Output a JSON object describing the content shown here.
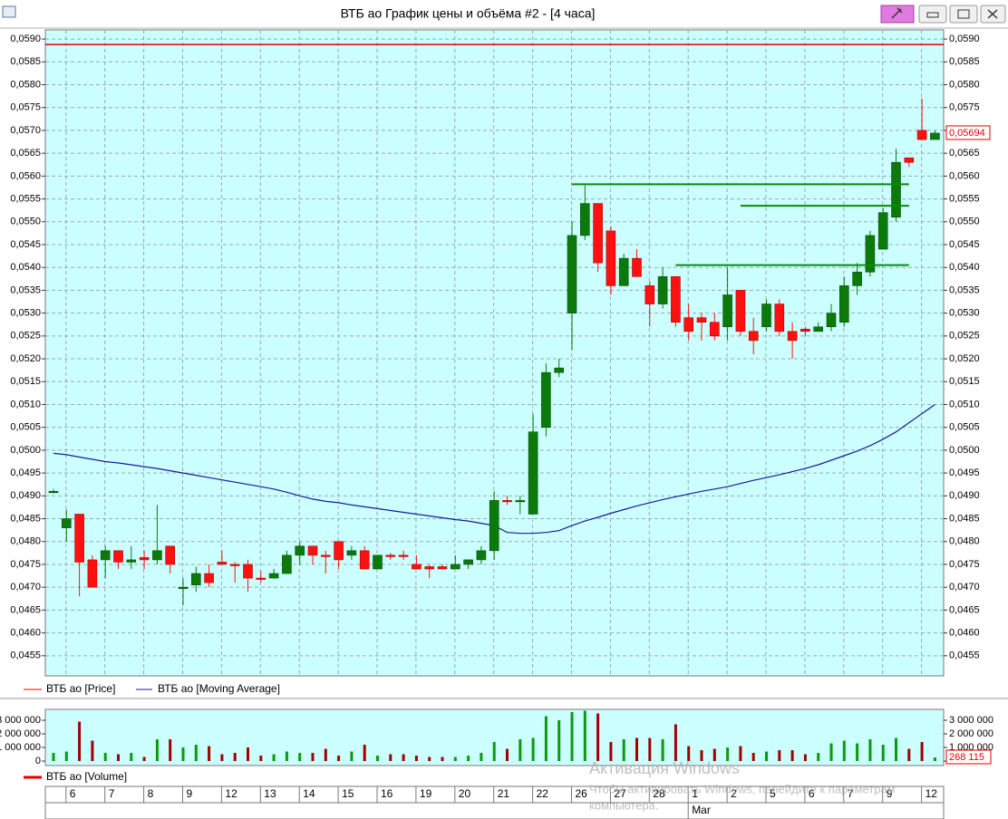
{
  "window": {
    "title": "ВТБ ао График цены и объёма #2 - [4 часа]"
  },
  "watermark": {
    "line1": "Активация Windows",
    "line2": "Чтобы активировать Windows, перейдите к параметрам",
    "line3": "компьютера."
  },
  "time_axis": {
    "days": [
      "6",
      "7",
      "8",
      "9",
      "12",
      "13",
      "14",
      "15",
      "16",
      "19",
      "20",
      "21",
      "22",
      "26",
      "27",
      "28",
      "1",
      "2",
      "5",
      "6",
      "7",
      "9",
      "12"
    ],
    "months": [
      "Mar"
    ]
  },
  "chart_data": [
    {
      "type": "candlestick",
      "up_color": "#0b7a0b",
      "down_color": "#ff1010",
      "series": [
        {
          "name": "ВТБ ао [Price]",
          "color": "#e00000",
          "open": [
            0.0491,
            0.0483,
            0.0486,
            0.0476,
            0.0476,
            0.0478,
            0.04755,
            0.04765,
            0.0476,
            0.0479,
            0.047,
            0.04705,
            0.0473,
            0.04755,
            0.0475,
            0.0475,
            0.0472,
            0.0472,
            0.0473,
            0.0477,
            0.0479,
            0.0477,
            0.048,
            0.0477,
            0.0478,
            0.0474,
            0.0477,
            0.0477,
            0.0475,
            0.04745,
            0.04745,
            0.0474,
            0.0475,
            0.0476,
            0.0478,
            0.0489,
            0.0489,
            0.0486,
            0.0505,
            0.0517,
            0.053,
            0.0547,
            0.0554,
            0.0548,
            0.0536,
            0.0542,
            0.0536,
            0.0532,
            0.0538,
            0.0529,
            0.0529,
            0.0528,
            0.0527,
            0.0535,
            0.0526,
            0.0527,
            0.0532,
            0.0526,
            0.05265,
            0.0526,
            0.0527,
            0.0528,
            0.0536,
            0.0539,
            0.0544,
            0.0551,
            0.0564,
            0.057,
            0.0568
          ],
          "high": [
            0.04915,
            0.0487,
            0.0486,
            0.0477,
            0.0479,
            0.0478,
            0.0479,
            0.0478,
            0.0488,
            0.0479,
            0.0472,
            0.04745,
            0.0475,
            0.0478,
            0.04755,
            0.0476,
            0.04735,
            0.0474,
            0.0478,
            0.048,
            0.0479,
            0.0478,
            0.048,
            0.0479,
            0.0479,
            0.0477,
            0.04775,
            0.0478,
            0.0477,
            0.0475,
            0.0475,
            0.0477,
            0.0476,
            0.0479,
            0.0491,
            0.049,
            0.049,
            0.0508,
            0.0519,
            0.052,
            0.055,
            0.0558,
            0.0554,
            0.0549,
            0.0543,
            0.0544,
            0.0537,
            0.054,
            0.0538,
            0.0532,
            0.053,
            0.053,
            0.054,
            0.0535,
            0.0529,
            0.0533,
            0.0533,
            0.0528,
            0.0527,
            0.0528,
            0.0532,
            0.0538,
            0.0541,
            0.0548,
            0.0553,
            0.0566,
            0.0564,
            0.0577,
            0.057
          ],
          "low": [
            0.04905,
            0.048,
            0.0468,
            0.047,
            0.0472,
            0.0474,
            0.0474,
            0.0474,
            0.0475,
            0.0473,
            0.0466,
            0.0469,
            0.047,
            0.0475,
            0.0471,
            0.0469,
            0.0471,
            0.0472,
            0.0473,
            0.0475,
            0.0475,
            0.0473,
            0.0474,
            0.0476,
            0.0474,
            0.0474,
            0.0476,
            0.0476,
            0.0474,
            0.0472,
            0.0474,
            0.0474,
            0.0474,
            0.0475,
            0.0476,
            0.0488,
            0.0486,
            0.0486,
            0.0503,
            0.0516,
            0.0522,
            0.0546,
            0.0539,
            0.0534,
            0.0536,
            0.0538,
            0.0527,
            0.0531,
            0.0527,
            0.0524,
            0.0524,
            0.0524,
            0.0524,
            0.0525,
            0.0521,
            0.0526,
            0.0525,
            0.052,
            0.0525,
            0.0526,
            0.0526,
            0.0527,
            0.0534,
            0.0538,
            0.0544,
            0.055,
            0.0562,
            0.0568,
            0.0568
          ],
          "close": [
            0.0491,
            0.0485,
            0.04755,
            0.047,
            0.0478,
            0.04755,
            0.0476,
            0.0476,
            0.0478,
            0.0475,
            0.047,
            0.0473,
            0.0471,
            0.0475,
            0.04748,
            0.0472,
            0.04718,
            0.0473,
            0.0477,
            0.0479,
            0.0477,
            0.04768,
            0.0476,
            0.0478,
            0.0474,
            0.0477,
            0.04768,
            0.04768,
            0.0474,
            0.0474,
            0.0474,
            0.0475,
            0.0476,
            0.0478,
            0.0489,
            0.04888,
            0.0489,
            0.0504,
            0.0517,
            0.0518,
            0.0547,
            0.0554,
            0.0541,
            0.0536,
            0.0542,
            0.0538,
            0.0532,
            0.0538,
            0.0528,
            0.0526,
            0.0528,
            0.0525,
            0.0534,
            0.0526,
            0.0524,
            0.0532,
            0.0526,
            0.0524,
            0.0526,
            0.0527,
            0.053,
            0.0536,
            0.0539,
            0.0547,
            0.0552,
            0.0563,
            0.0563,
            0.0568,
            0.05694
          ]
        },
        {
          "name": "ВТБ ао [Moving Average]",
          "color": "#1a1a9a",
          "values": [
            0.04993,
            0.0499,
            0.04985,
            0.0498,
            0.04975,
            0.04972,
            0.04968,
            0.04964,
            0.0496,
            0.04955,
            0.0495,
            0.04945,
            0.0494,
            0.04935,
            0.0493,
            0.04925,
            0.0492,
            0.04915,
            0.04908,
            0.049,
            0.04893,
            0.04888,
            0.04885,
            0.0488,
            0.04876,
            0.04872,
            0.04868,
            0.04864,
            0.0486,
            0.04856,
            0.04852,
            0.04848,
            0.04845,
            0.0484,
            0.04835,
            0.0482,
            0.04818,
            0.04818,
            0.0482,
            0.04824,
            0.04835,
            0.04845,
            0.04853,
            0.04862,
            0.0487,
            0.04878,
            0.04885,
            0.04892,
            0.04898,
            0.04904,
            0.0491,
            0.04915,
            0.0492,
            0.04927,
            0.04934,
            0.0494,
            0.04946,
            0.04953,
            0.0496,
            0.04968,
            0.04978,
            0.04988,
            0.04998,
            0.0501,
            0.05024,
            0.0504,
            0.0506,
            0.0508,
            0.051
          ]
        }
      ],
      "level": 0.05888,
      "level_color": "#e00000",
      "trend_lines": [
        {
          "value": 0.05582,
          "x": [
            40,
            66
          ]
        },
        {
          "value": 0.05535,
          "x": [
            53,
            66
          ]
        },
        {
          "value": 0.05405,
          "x": [
            48,
            66
          ]
        }
      ],
      "trend_color": "#0b8a0b",
      "current_label": "0,05694",
      "grid": true,
      "ylim": [
        0.04506,
        0.0592
      ],
      "yticks": [
        {
          "value": 0.0455,
          "label": "0,0455"
        },
        {
          "value": 0.046,
          "label": "0,0460"
        },
        {
          "value": 0.0465,
          "label": "0,0465"
        },
        {
          "value": 0.047,
          "label": "0,0470"
        },
        {
          "value": 0.0475,
          "label": "0,0475"
        },
        {
          "value": 0.048,
          "label": "0,0480"
        },
        {
          "value": 0.0485,
          "label": "0,0485"
        },
        {
          "value": 0.049,
          "label": "0,0490"
        },
        {
          "value": 0.0495,
          "label": "0,0495"
        },
        {
          "value": 0.05,
          "label": "0,0500"
        },
        {
          "value": 0.0505,
          "label": "0,0505"
        },
        {
          "value": 0.051,
          "label": "0,0510"
        },
        {
          "value": 0.0515,
          "label": "0,0515"
        },
        {
          "value": 0.052,
          "label": "0,0520"
        },
        {
          "value": 0.0525,
          "label": "0,0525"
        },
        {
          "value": 0.053,
          "label": "0,0530"
        },
        {
          "value": 0.0535,
          "label": "0,0535"
        },
        {
          "value": 0.054,
          "label": "0,0540"
        },
        {
          "value": 0.0545,
          "label": "0,0545"
        },
        {
          "value": 0.055,
          "label": "0,0550"
        },
        {
          "value": 0.0555,
          "label": "0,0555"
        },
        {
          "value": 0.056,
          "label": "0,0560"
        },
        {
          "value": 0.0565,
          "label": "0,0565"
        },
        {
          "value": 0.057,
          "label": "0,0570"
        },
        {
          "value": 0.0575,
          "label": "0,0575"
        },
        {
          "value": 0.058,
          "label": "0,0580"
        },
        {
          "value": 0.0585,
          "label": "0,0585"
        },
        {
          "value": 0.059,
          "label": "0,0590"
        }
      ]
    },
    {
      "type": "bar",
      "up_color": "#0b9a0b",
      "down_color": "#a00000",
      "series": [
        {
          "name": "ВТБ ао [Volume]",
          "color": "#e00000",
          "values": [
            600000,
            700000,
            2900000,
            1500000,
            600000,
            500000,
            600000,
            300000,
            1600000,
            1600000,
            1000000,
            1200000,
            1100000,
            500000,
            600000,
            1000000,
            400000,
            500000,
            700000,
            600000,
            600000,
            900000,
            400000,
            700000,
            1200000,
            400000,
            500000,
            500000,
            400000,
            300000,
            300000,
            300000,
            400000,
            600000,
            1400000,
            900000,
            1600000,
            1700000,
            3300000,
            3000000,
            3600000,
            3700000,
            3500000,
            1400000,
            1600000,
            1700000,
            1700000,
            1600000,
            2700000,
            1100000,
            800000,
            900000,
            1000000,
            1100000,
            600000,
            700000,
            800000,
            800000,
            500000,
            600000,
            1300000,
            1500000,
            1300000,
            1600000,
            1200000,
            1700000,
            900000,
            1400000,
            268115
          ]
        }
      ],
      "current_label": "268 115",
      "ylim": [
        -330000,
        3800000
      ],
      "yticks": [
        0,
        {
          "value": 1000000,
          "label": "1 000 000"
        },
        {
          "value": 2000000,
          "label": "2 000 000"
        },
        {
          "value": 3000000,
          "label": "3 000 000"
        }
      ]
    }
  ]
}
